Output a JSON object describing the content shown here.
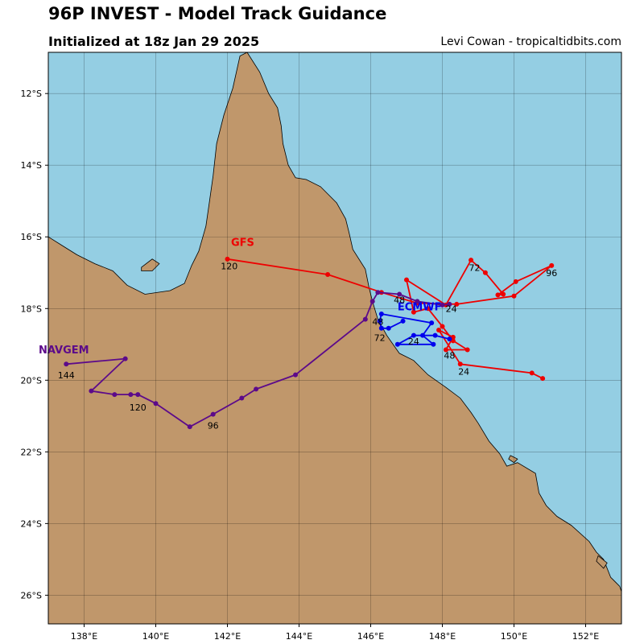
{
  "header": {
    "title": "96P INVEST - Model Track Guidance",
    "subtitle": "Initialized at 18z Jan 29 2025",
    "credit": "Levi Cowan - tropicaltidbits.com"
  },
  "colors": {
    "ocean": "#94cee3",
    "land": "#c0976b",
    "gfs": "#ee0000",
    "ecmwf": "#0000ee",
    "navgem": "#5c0a8a"
  },
  "map": {
    "lon_range": [
      137.0,
      153.0
    ],
    "lat_range": [
      -26.8,
      -10.85
    ],
    "lon_ticks": [
      {
        "value": 138,
        "label": "138°E"
      },
      {
        "value": 140,
        "label": "140°E"
      },
      {
        "value": 142,
        "label": "142°E"
      },
      {
        "value": 144,
        "label": "144°E"
      },
      {
        "value": 146,
        "label": "146°E"
      },
      {
        "value": 148,
        "label": "148°E"
      },
      {
        "value": 150,
        "label": "150°E"
      },
      {
        "value": 152,
        "label": "152°E"
      }
    ],
    "lat_ticks": [
      {
        "value": -12,
        "label": "12°S"
      },
      {
        "value": -14,
        "label": "14°S"
      },
      {
        "value": -16,
        "label": "16°S"
      },
      {
        "value": -18,
        "label": "18°S"
      },
      {
        "value": -20,
        "label": "20°S"
      },
      {
        "value": -22,
        "label": "22°S"
      },
      {
        "value": -24,
        "label": "24°S"
      },
      {
        "value": -26,
        "label": "26°S"
      }
    ],
    "coastline": [
      [
        137.0,
        -19.95
      ],
      [
        137.5,
        -20.2
      ],
      [
        138.2,
        -20.8
      ],
      [
        139.0,
        -21.6
      ],
      [
        139.9,
        -22.1
      ],
      [
        140.6,
        -22.3
      ],
      [
        141.4,
        -22.6
      ],
      [
        142.0,
        -23.2
      ],
      [
        137.0,
        -26.8
      ],
      [
        153.0,
        -26.8
      ],
      [
        153.0,
        -25.9
      ],
      [
        152.95,
        -25.75
      ],
      [
        152.7,
        -25.5
      ],
      [
        152.5,
        -25.0
      ],
      [
        152.3,
        -24.8
      ],
      [
        152.1,
        -24.5
      ],
      [
        151.6,
        -24.05
      ],
      [
        151.2,
        -23.8
      ],
      [
        150.9,
        -23.5
      ],
      [
        150.7,
        -23.15
      ],
      [
        150.6,
        -22.6
      ],
      [
        150.1,
        -22.3
      ],
      [
        149.8,
        -22.4
      ],
      [
        149.6,
        -22.05
      ],
      [
        149.3,
        -21.7
      ],
      [
        149.0,
        -21.2
      ],
      [
        148.8,
        -20.9
      ],
      [
        148.5,
        -20.5
      ],
      [
        148.1,
        -20.2
      ],
      [
        147.6,
        -19.85
      ],
      [
        147.2,
        -19.45
      ],
      [
        146.8,
        -19.25
      ],
      [
        146.45,
        -18.75
      ],
      [
        146.2,
        -18.3
      ],
      [
        146.05,
        -17.8
      ],
      [
        145.95,
        -17.4
      ],
      [
        145.85,
        -16.9
      ],
      [
        145.5,
        -16.35
      ],
      [
        145.4,
        -15.9
      ],
      [
        145.3,
        -15.5
      ],
      [
        145.05,
        -15.05
      ],
      [
        144.6,
        -14.6
      ],
      [
        144.2,
        -14.4
      ],
      [
        143.9,
        -14.35
      ],
      [
        143.7,
        -14.0
      ],
      [
        143.55,
        -13.4
      ],
      [
        143.5,
        -12.9
      ],
      [
        143.4,
        -12.4
      ],
      [
        143.15,
        -12.0
      ],
      [
        142.9,
        -11.4
      ],
      [
        142.55,
        -10.85
      ],
      [
        142.35,
        -10.95
      ],
      [
        142.15,
        -11.85
      ],
      [
        141.9,
        -12.6
      ],
      [
        141.7,
        -13.4
      ],
      [
        141.6,
        -14.3
      ],
      [
        141.5,
        -15.0
      ],
      [
        141.4,
        -15.7
      ],
      [
        141.2,
        -16.4
      ],
      [
        141.0,
        -16.8
      ],
      [
        140.8,
        -17.3
      ],
      [
        140.4,
        -17.5
      ],
      [
        139.7,
        -17.6
      ],
      [
        139.2,
        -17.35
      ],
      [
        138.8,
        -16.95
      ],
      [
        138.3,
        -16.75
      ],
      [
        137.8,
        -16.5
      ],
      [
        137.4,
        -16.25
      ],
      [
        137.0,
        -16.0
      ]
    ],
    "islands": [
      [
        [
          139.6,
          -16.85
        ],
        [
          139.9,
          -16.62
        ],
        [
          140.1,
          -16.75
        ],
        [
          139.9,
          -16.95
        ],
        [
          139.6,
          -16.95
        ]
      ],
      [
        [
          152.35,
          -24.9
        ],
        [
          152.6,
          -25.1
        ],
        [
          152.5,
          -25.25
        ],
        [
          152.3,
          -25.05
        ]
      ],
      [
        [
          149.9,
          -22.1
        ],
        [
          150.1,
          -22.2
        ],
        [
          150.0,
          -22.3
        ],
        [
          149.85,
          -22.2
        ]
      ]
    ]
  },
  "models": [
    {
      "name": "GFS",
      "color_key": "gfs",
      "label_pos": [
        142.1,
        -16.25
      ],
      "points": [
        [
          142.0,
          -16.62
        ],
        [
          144.8,
          -17.05
        ],
        [
          146.3,
          -17.55
        ],
        [
          147.3,
          -17.85
        ],
        [
          148.4,
          -17.88
        ],
        [
          150.0,
          -17.65
        ],
        [
          151.05,
          -16.8
        ],
        [
          150.05,
          -17.25
        ],
        [
          149.55,
          -17.62
        ],
        [
          149.7,
          -17.6
        ],
        [
          149.2,
          -17.0
        ],
        [
          148.8,
          -16.65
        ],
        [
          148.1,
          -17.9
        ],
        [
          147.0,
          -17.2
        ],
        [
          147.2,
          -18.1
        ],
        [
          147.6,
          -18.0
        ],
        [
          148.0,
          -18.5
        ],
        [
          148.3,
          -18.9
        ],
        [
          148.7,
          -19.15
        ],
        [
          148.1,
          -19.15
        ],
        [
          148.3,
          -18.8
        ],
        [
          147.9,
          -18.6
        ],
        [
          148.5,
          -19.55
        ],
        [
          150.5,
          -19.8
        ],
        [
          150.8,
          -19.95
        ]
      ],
      "hour_labels": [
        {
          "text": "120",
          "lon": 142.05,
          "lat": -16.9
        },
        {
          "text": "72",
          "lon": 148.9,
          "lat": -16.95
        },
        {
          "text": "96",
          "lon": 151.05,
          "lat": -17.1
        },
        {
          "text": "48",
          "lon": 148.2,
          "lat": -19.4
        },
        {
          "text": "24",
          "lon": 148.6,
          "lat": -19.85
        }
      ]
    },
    {
      "name": "ECMWF",
      "color_key": "ecmwf",
      "label_pos": [
        146.75,
        -18.05
      ],
      "points": [
        [
          148.2,
          -18.85
        ],
        [
          147.8,
          -18.75
        ],
        [
          147.2,
          -18.75
        ],
        [
          146.75,
          -19.0
        ],
        [
          147.75,
          -19.0
        ],
        [
          147.45,
          -18.75
        ],
        [
          147.7,
          -18.4
        ],
        [
          146.3,
          -18.15
        ],
        [
          146.25,
          -18.35
        ],
        [
          146.3,
          -18.55
        ],
        [
          146.5,
          -18.55
        ],
        [
          146.9,
          -18.35
        ]
      ],
      "hour_labels": [
        {
          "text": "24",
          "lon": 147.2,
          "lat": -19.0
        },
        {
          "text": "48",
          "lon": 146.2,
          "lat": -18.45
        },
        {
          "text": "72",
          "lon": 146.25,
          "lat": -18.9
        }
      ]
    },
    {
      "name": "NAVGEM",
      "color_key": "navgem",
      "label_pos": [
        137.4,
        -19.25
      ],
      "points": [
        [
          148.2,
          -17.88
        ],
        [
          148.0,
          -17.9
        ],
        [
          147.3,
          -17.8
        ],
        [
          146.8,
          -17.6
        ],
        [
          146.2,
          -17.55
        ],
        [
          146.05,
          -17.8
        ],
        [
          145.85,
          -18.3
        ],
        [
          143.9,
          -19.85
        ],
        [
          142.8,
          -20.25
        ],
        [
          142.4,
          -20.5
        ],
        [
          141.6,
          -20.95
        ],
        [
          140.95,
          -21.3
        ],
        [
          140.0,
          -20.65
        ],
        [
          139.5,
          -20.4
        ],
        [
          139.3,
          -20.4
        ],
        [
          138.85,
          -20.4
        ],
        [
          138.2,
          -20.3
        ],
        [
          139.15,
          -19.4
        ],
        [
          137.5,
          -19.55
        ]
      ],
      "hour_labels": [
        {
          "text": "24",
          "lon": 148.25,
          "lat": -18.1
        },
        {
          "text": "48",
          "lon": 146.8,
          "lat": -17.85
        },
        {
          "text": "96",
          "lon": 141.6,
          "lat": -21.35
        },
        {
          "text": "120",
          "lon": 139.5,
          "lat": -20.85
        },
        {
          "text": "144",
          "lon": 137.5,
          "lat": -19.95
        }
      ]
    }
  ]
}
